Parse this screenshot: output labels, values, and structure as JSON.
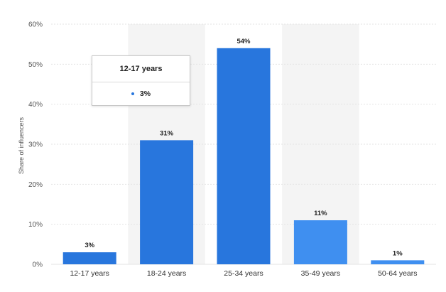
{
  "chart_data": {
    "type": "bar",
    "categories": [
      "12-17 years",
      "18-24 years",
      "25-34 years",
      "35-49 years",
      "50-64 years"
    ],
    "values": [
      3,
      31,
      54,
      11,
      1
    ],
    "value_labels": [
      "3%",
      "31%",
      "54%",
      "11%",
      "1%"
    ],
    "highlighted": [
      0,
      1,
      2
    ],
    "ylabel": "Share of influencers",
    "ylim": [
      0,
      60
    ],
    "yticks": [
      0,
      10,
      20,
      30,
      40,
      50,
      60
    ],
    "ytick_labels": [
      "0%",
      "10%",
      "20%",
      "30%",
      "40%",
      "50%",
      "60%"
    ],
    "grid": true,
    "colors": {
      "bar_dark": "#2876dd",
      "bar_light": "#3f8ff0",
      "grid": "#e3e3e3",
      "band": "#f4f4f4"
    }
  },
  "tooltip": {
    "title": "12-17 years",
    "value": "3%"
  }
}
